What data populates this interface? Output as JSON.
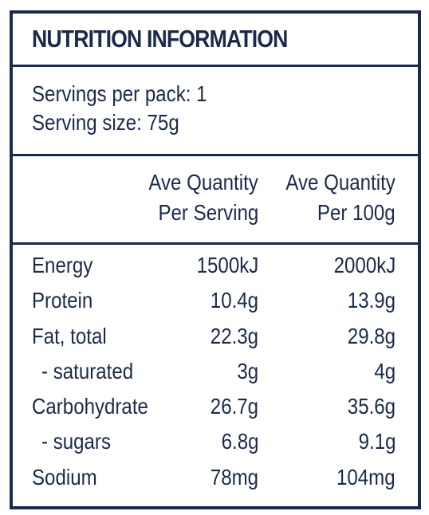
{
  "title": "NUTRITION INFORMATION",
  "servings": {
    "per_pack": "Servings per pack: 1",
    "size": "Serving size: 75g"
  },
  "headers": {
    "col1_line1": "Ave Quantity",
    "col1_line2": "Per Serving",
    "col2_line1": "Ave Quantity",
    "col2_line2": "Per 100g"
  },
  "rows": [
    {
      "name": "Energy",
      "per_serving": "1500kJ",
      "per_100g": "2000kJ"
    },
    {
      "name": "Protein",
      "per_serving": "10.4g",
      "per_100g": "13.9g"
    },
    {
      "name": "Fat, total",
      "per_serving": "22.3g",
      "per_100g": "29.8g"
    },
    {
      "name": "- saturated",
      "per_serving": "3g",
      "per_100g": "4g"
    },
    {
      "name": "Carbohydrate",
      "per_serving": "26.7g",
      "per_100g": "35.6g"
    },
    {
      "name": "- sugars",
      "per_serving": "6.8g",
      "per_100g": "9.1g"
    },
    {
      "name": "Sodium",
      "per_serving": "78mg",
      "per_100g": "104mg"
    }
  ]
}
